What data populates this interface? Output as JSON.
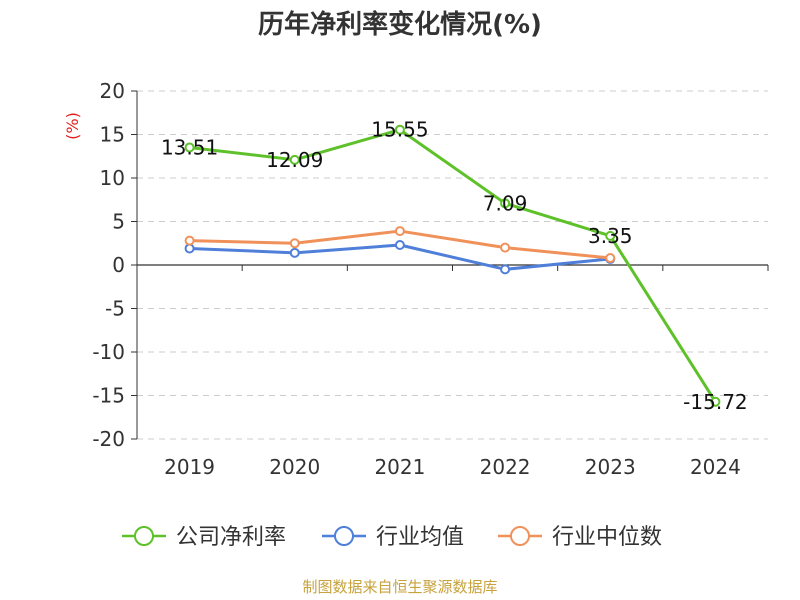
{
  "chart_data": {
    "type": "line",
    "title": "历年净利率变化情况(%)",
    "ylabel": "(%)",
    "categories": [
      "2019",
      "2020",
      "2021",
      "2022",
      "2023",
      "2024"
    ],
    "ylim": [
      -20,
      20
    ],
    "yticks": [
      20,
      15,
      10,
      5,
      0,
      -5,
      -10,
      -15,
      -20
    ],
    "grid": "horizontal-dashed",
    "legend_position": "bottom",
    "series": [
      {
        "name": "公司净利率",
        "color": "#5ec12a",
        "values": [
          13.51,
          12.09,
          15.55,
          7.09,
          3.35,
          -15.72
        ],
        "labels": [
          "13.51",
          "12.09",
          "15.55",
          "7.09",
          "3.35",
          "-15.72"
        ]
      },
      {
        "name": "行业均值",
        "color": "#4f7fd9",
        "values": [
          1.9,
          1.4,
          2.3,
          -0.5,
          0.7,
          null
        ]
      },
      {
        "name": "行业中位数",
        "color": "#f0915a",
        "values": [
          2.8,
          2.5,
          3.9,
          2.0,
          0.8,
          null
        ]
      }
    ]
  },
  "source_note": "制图数据来自恒生聚源数据库"
}
